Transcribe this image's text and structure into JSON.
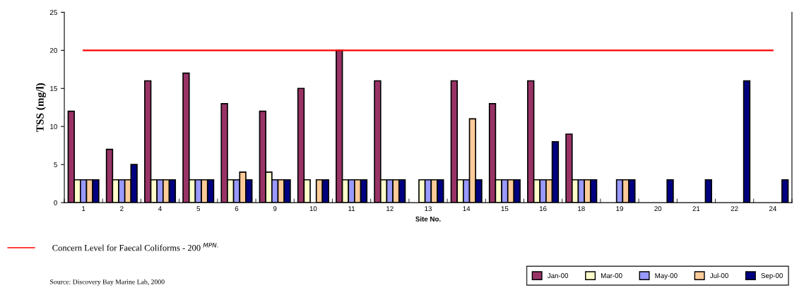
{
  "chart_data": {
    "type": "bar",
    "xlabel": "Site No.",
    "ylabel": "TSS (mg/l)",
    "categories": [
      "1",
      "2",
      "4",
      "5",
      "6",
      "9",
      "10",
      "11",
      "12",
      "13",
      "14",
      "15",
      "16",
      "18",
      "19",
      "20",
      "21",
      "22",
      "24"
    ],
    "series": [
      {
        "name": "Jan-00",
        "color": "#993366",
        "values": [
          12,
          7,
          16,
          17,
          13,
          12,
          15,
          20,
          16,
          null,
          16,
          13,
          16,
          9,
          null,
          null,
          null,
          null,
          null
        ]
      },
      {
        "name": "Mar-00",
        "color": "#ffffcc",
        "values": [
          3,
          3,
          3,
          3,
          3,
          4,
          3,
          3,
          3,
          3,
          3,
          3,
          3,
          3,
          null,
          null,
          null,
          null,
          null
        ]
      },
      {
        "name": "May-00",
        "color": "#9999ff",
        "values": [
          3,
          3,
          3,
          3,
          3,
          3,
          null,
          3,
          3,
          3,
          3,
          3,
          3,
          3,
          3,
          null,
          null,
          null,
          null
        ]
      },
      {
        "name": "Jul-00",
        "color": "#ffcc99",
        "values": [
          3,
          3,
          3,
          3,
          4,
          3,
          3,
          3,
          3,
          3,
          11,
          3,
          3,
          3,
          3,
          null,
          null,
          null,
          null
        ]
      },
      {
        "name": "Sep-00",
        "color": "#000080",
        "values": [
          3,
          5,
          3,
          3,
          3,
          3,
          3,
          3,
          3,
          3,
          3,
          3,
          8,
          3,
          3,
          3,
          3,
          16,
          3
        ]
      }
    ],
    "ylim": [
      0,
      25
    ],
    "yticks": [
      0,
      5,
      10,
      15,
      20,
      25
    ],
    "grid": false,
    "legend": "bottom right",
    "ref_lines": [
      {
        "axis": "y",
        "value": 20,
        "label": "Concern Level for Faecal Coliforms - 200 $^{MPN.}$",
        "color": "#ff0000",
        "line_style": "solid"
      }
    ],
    "annotations": [
      "Source: Discovery Bay Marine Lab, 2000"
    ]
  }
}
